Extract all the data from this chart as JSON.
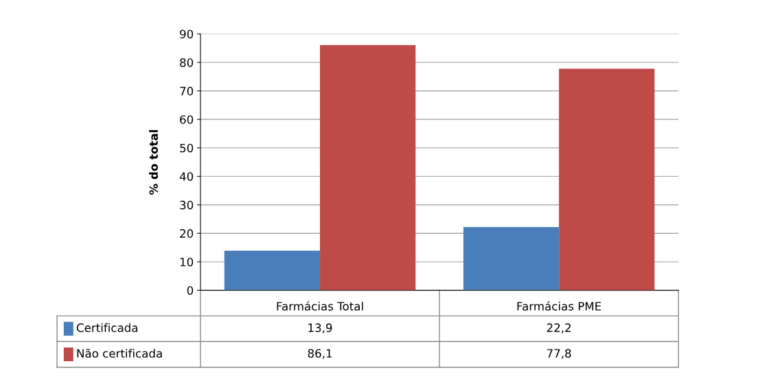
{
  "chart_data": {
    "type": "bar",
    "ylabel": "% do total",
    "categories": [
      "Farmácias Total",
      "Farmácias PME"
    ],
    "series": [
      {
        "name": "Certificada",
        "color": "#4a7ebb",
        "values": [
          13.9,
          22.2
        ],
        "value_labels": [
          "13,9",
          "22,2"
        ]
      },
      {
        "name": "Não certificada",
        "color": "#be4b48",
        "values": [
          86.1,
          77.8
        ],
        "value_labels": [
          "86,1",
          "77,8"
        ]
      }
    ],
    "ylim": [
      0,
      90
    ],
    "yticks": [
      0,
      10,
      20,
      30,
      40,
      50,
      60,
      70,
      80,
      90
    ],
    "grid": "y",
    "legend": "bottom"
  }
}
